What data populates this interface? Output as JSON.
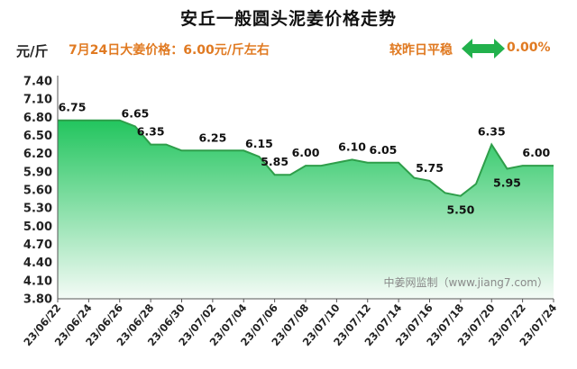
{
  "title": "安丘一般圆头泥姜价格走势",
  "unit_label": "元/斤",
  "price_note": "7月24日大姜价格：6.00元/斤左右",
  "compare": {
    "label": "较昨日平稳",
    "percent": "0.00%",
    "arrow_icon": "double-arrow-icon",
    "arrow_color": "#22b14c"
  },
  "watermark": "中姜网监制（www.jiang7.com）",
  "colors": {
    "area_top": "#22c55e",
    "area_bottom": "#f4fbf6",
    "line": "#2e9e4a",
    "accent": "#e07a22"
  },
  "chart_data": {
    "type": "area",
    "title": "安丘一般圆头泥姜价格走势",
    "ylabel": "元/斤",
    "xlabel": "",
    "ylim": [
      3.8,
      7.4
    ],
    "yticks": [
      "7.40",
      "7.10",
      "6.80",
      "6.50",
      "6.20",
      "5.90",
      "5.60",
      "5.30",
      "5.00",
      "4.70",
      "4.40",
      "4.10",
      "3.80"
    ],
    "x": [
      "23/06/22",
      "23/06/23",
      "23/06/24",
      "23/06/25",
      "23/06/26",
      "23/06/27",
      "23/06/28",
      "23/06/29",
      "23/06/30",
      "23/07/01",
      "23/07/02",
      "23/07/03",
      "23/07/04",
      "23/07/05",
      "23/07/06",
      "23/07/07",
      "23/07/08",
      "23/07/09",
      "23/07/10",
      "23/07/11",
      "23/07/12",
      "23/07/13",
      "23/07/14",
      "23/07/15",
      "23/07/16",
      "23/07/17",
      "23/07/18",
      "23/07/19",
      "23/07/20",
      "23/07/21",
      "23/07/22",
      "23/07/23",
      "23/07/24"
    ],
    "xtick_labels": [
      "23/06/22",
      "23/06/24",
      "23/06/26",
      "23/06/28",
      "23/06/30",
      "23/07/02",
      "23/07/04",
      "23/07/06",
      "23/07/08",
      "23/07/10",
      "23/07/12",
      "23/07/14",
      "23/07/16",
      "23/07/18",
      "23/07/20",
      "23/07/22",
      "23/07/24"
    ],
    "values": [
      6.75,
      6.75,
      6.75,
      6.75,
      6.75,
      6.65,
      6.35,
      6.35,
      6.25,
      6.25,
      6.25,
      6.25,
      6.25,
      6.15,
      5.85,
      5.85,
      6.0,
      6.0,
      6.05,
      6.1,
      6.05,
      6.05,
      6.05,
      5.8,
      5.75,
      5.55,
      5.5,
      5.7,
      6.35,
      5.95,
      6.0,
      6.0,
      6.0
    ],
    "data_labels": [
      {
        "x": "23/06/22",
        "text": "6.75"
      },
      {
        "x": "23/06/27",
        "text": "6.65"
      },
      {
        "x": "23/06/28",
        "text": "6.35"
      },
      {
        "x": "23/07/02",
        "text": "6.25"
      },
      {
        "x": "23/07/05",
        "text": "6.15"
      },
      {
        "x": "23/07/06",
        "text": "5.85"
      },
      {
        "x": "23/07/08",
        "text": "6.00"
      },
      {
        "x": "23/07/11",
        "text": "6.10"
      },
      {
        "x": "23/07/13",
        "text": "6.05"
      },
      {
        "x": "23/07/16",
        "text": "5.75"
      },
      {
        "x": "23/07/18",
        "text": "5.50"
      },
      {
        "x": "23/07/20",
        "text": "6.35"
      },
      {
        "x": "23/07/21",
        "text": "5.95"
      },
      {
        "x": "23/07/23",
        "text": "6.00"
      }
    ],
    "grid": false,
    "legend": "none"
  }
}
